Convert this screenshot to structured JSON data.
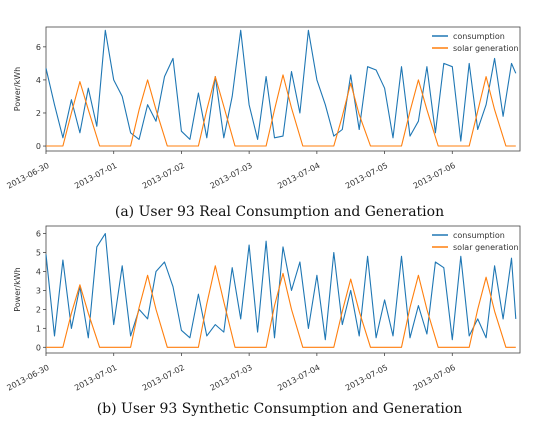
{
  "chart_data": [
    {
      "type": "line",
      "ylabel": "Power/kWh",
      "ylim": [
        -0.3,
        7.2
      ],
      "yticks": [
        0,
        2,
        4,
        6
      ],
      "xlim": [
        "2013-06-30 00:00",
        "2013-07-07 00:00"
      ],
      "xtick_labels": [
        "2013-06-30",
        "2013-07-01",
        "2013-07-02",
        "2013-07-03",
        "2013-07-04",
        "2013-07-05",
        "2013-07-06"
      ],
      "caption": "(a) User 93 Real Consumption and Generation",
      "legend_position": "upper-right",
      "series": [
        {
          "name": "consumption",
          "color": "#1f77b4",
          "x": [
            "2013-06-30 00:00",
            "2013-06-30 03:00",
            "2013-06-30 06:00",
            "2013-06-30 09:00",
            "2013-06-30 12:00",
            "2013-06-30 15:00",
            "2013-06-30 18:00",
            "2013-06-30 21:00",
            "2013-07-01 00:00",
            "2013-07-01 03:00",
            "2013-07-01 06:00",
            "2013-07-01 09:00",
            "2013-07-01 12:00",
            "2013-07-01 15:00",
            "2013-07-01 18:00",
            "2013-07-01 21:00",
            "2013-07-02 00:00",
            "2013-07-02 03:00",
            "2013-07-02 06:00",
            "2013-07-02 09:00",
            "2013-07-02 12:00",
            "2013-07-02 15:00",
            "2013-07-02 18:00",
            "2013-07-02 21:00",
            "2013-07-03 00:00",
            "2013-07-03 03:00",
            "2013-07-03 06:00",
            "2013-07-03 09:00",
            "2013-07-03 12:00",
            "2013-07-03 15:00",
            "2013-07-03 18:00",
            "2013-07-03 21:00",
            "2013-07-04 00:00",
            "2013-07-04 03:00",
            "2013-07-04 06:00",
            "2013-07-04 09:00",
            "2013-07-04 12:00",
            "2013-07-04 15:00",
            "2013-07-04 18:00",
            "2013-07-04 21:00",
            "2013-07-05 00:00",
            "2013-07-05 03:00",
            "2013-07-05 06:00",
            "2013-07-05 09:00",
            "2013-07-05 12:00",
            "2013-07-05 15:00",
            "2013-07-05 18:00",
            "2013-07-05 21:00",
            "2013-07-06 00:00",
            "2013-07-06 03:00",
            "2013-07-06 06:00",
            "2013-07-06 09:00",
            "2013-07-06 12:00",
            "2013-07-06 15:00",
            "2013-07-06 18:00",
            "2013-07-06 21:00",
            "2013-07-06 22:30"
          ],
          "values": [
            4.7,
            2.5,
            0.5,
            2.8,
            0.8,
            3.5,
            1.2,
            7.0,
            4.0,
            3.0,
            0.8,
            0.4,
            2.5,
            1.5,
            4.2,
            5.3,
            0.9,
            0.4,
            3.2,
            0.5,
            4.2,
            0.5,
            3.0,
            7.0,
            2.5,
            0.4,
            4.2,
            0.5,
            0.6,
            4.5,
            2.0,
            7.0,
            4.0,
            2.5,
            0.6,
            1.0,
            4.3,
            1.0,
            4.8,
            4.6,
            3.5,
            0.5,
            4.8,
            0.6,
            1.5,
            4.8,
            0.8,
            5.0,
            4.8,
            0.3,
            5.0,
            1.0,
            2.5,
            5.3,
            1.8,
            5.0,
            4.4
          ]
        },
        {
          "name": "solar generation",
          "color": "#ff7f0e",
          "x": [
            "2013-06-30 00:00",
            "2013-06-30 06:00",
            "2013-06-30 09:00",
            "2013-06-30 12:00",
            "2013-06-30 15:00",
            "2013-06-30 19:00",
            "2013-07-01 06:00",
            "2013-07-01 09:00",
            "2013-07-01 12:00",
            "2013-07-01 15:00",
            "2013-07-01 19:00",
            "2013-07-02 06:00",
            "2013-07-02 09:00",
            "2013-07-02 12:00",
            "2013-07-02 15:00",
            "2013-07-02 19:00",
            "2013-07-03 06:00",
            "2013-07-03 09:00",
            "2013-07-03 12:00",
            "2013-07-03 15:00",
            "2013-07-03 19:00",
            "2013-07-04 06:00",
            "2013-07-04 09:00",
            "2013-07-04 12:00",
            "2013-07-04 15:00",
            "2013-07-04 19:00",
            "2013-07-05 06:00",
            "2013-07-05 09:00",
            "2013-07-05 12:00",
            "2013-07-05 15:00",
            "2013-07-05 19:00",
            "2013-07-06 06:00",
            "2013-07-06 09:00",
            "2013-07-06 12:00",
            "2013-07-06 15:00",
            "2013-07-06 19:00",
            "2013-07-06 22:30"
          ],
          "values": [
            0,
            0,
            2.0,
            3.9,
            2.2,
            0,
            0,
            2.2,
            4.0,
            2.2,
            0,
            0,
            2.2,
            4.2,
            2.4,
            0,
            0,
            2.2,
            4.3,
            2.3,
            0,
            0,
            1.8,
            3.8,
            1.9,
            0,
            0,
            2.1,
            4.0,
            2.2,
            0,
            0,
            2.1,
            4.2,
            2.2,
            0,
            0
          ]
        }
      ]
    },
    {
      "type": "line",
      "ylabel": "Power/kWh",
      "ylim": [
        -0.3,
        6.4
      ],
      "yticks": [
        0,
        1,
        2,
        3,
        4,
        5,
        6
      ],
      "xlim": [
        "2013-06-30 00:00",
        "2013-07-07 00:00"
      ],
      "xtick_labels": [
        "2013-06-30",
        "2013-07-01",
        "2013-07-02",
        "2013-07-03",
        "2013-07-04",
        "2013-07-05",
        "2013-07-06"
      ],
      "caption": "(b) User 93 Synthetic Consumption and Generation",
      "legend_position": "upper-right",
      "series": [
        {
          "name": "consumption",
          "color": "#1f77b4",
          "x": [
            "2013-06-30 00:00",
            "2013-06-30 03:00",
            "2013-06-30 06:00",
            "2013-06-30 09:00",
            "2013-06-30 12:00",
            "2013-06-30 15:00",
            "2013-06-30 18:00",
            "2013-06-30 21:00",
            "2013-07-01 00:00",
            "2013-07-01 03:00",
            "2013-07-01 06:00",
            "2013-07-01 09:00",
            "2013-07-01 12:00",
            "2013-07-01 15:00",
            "2013-07-01 18:00",
            "2013-07-01 21:00",
            "2013-07-02 00:00",
            "2013-07-02 03:00",
            "2013-07-02 06:00",
            "2013-07-02 09:00",
            "2013-07-02 12:00",
            "2013-07-02 15:00",
            "2013-07-02 18:00",
            "2013-07-02 21:00",
            "2013-07-03 00:00",
            "2013-07-03 03:00",
            "2013-07-03 06:00",
            "2013-07-03 09:00",
            "2013-07-03 12:00",
            "2013-07-03 15:00",
            "2013-07-03 18:00",
            "2013-07-03 21:00",
            "2013-07-04 00:00",
            "2013-07-04 03:00",
            "2013-07-04 06:00",
            "2013-07-04 09:00",
            "2013-07-04 12:00",
            "2013-07-04 15:00",
            "2013-07-04 18:00",
            "2013-07-04 21:00",
            "2013-07-05 00:00",
            "2013-07-05 03:00",
            "2013-07-05 06:00",
            "2013-07-05 09:00",
            "2013-07-05 12:00",
            "2013-07-05 15:00",
            "2013-07-05 18:00",
            "2013-07-05 21:00",
            "2013-07-06 00:00",
            "2013-07-06 03:00",
            "2013-07-06 06:00",
            "2013-07-06 09:00",
            "2013-07-06 12:00",
            "2013-07-06 15:00",
            "2013-07-06 18:00",
            "2013-07-06 21:00",
            "2013-07-06 22:30"
          ],
          "values": [
            4.9,
            0.6,
            4.6,
            1.0,
            3.2,
            0.5,
            5.3,
            6.0,
            1.2,
            4.3,
            0.6,
            2.0,
            1.5,
            4.0,
            4.5,
            3.2,
            0.9,
            0.5,
            2.8,
            0.6,
            1.2,
            0.8,
            4.2,
            1.5,
            5.4,
            0.8,
            5.6,
            0.5,
            5.3,
            3.0,
            4.5,
            1.0,
            3.8,
            0.4,
            5.0,
            1.2,
            3.0,
            0.6,
            4.8,
            0.5,
            2.5,
            0.6,
            4.8,
            0.5,
            2.2,
            0.7,
            4.5,
            4.2,
            0.4,
            4.8,
            0.6,
            1.5,
            0.5,
            4.3,
            1.5,
            4.7,
            1.5
          ]
        },
        {
          "name": "solar generation",
          "color": "#ff7f0e",
          "x": [
            "2013-06-30 00:00",
            "2013-06-30 06:00",
            "2013-06-30 09:00",
            "2013-06-30 12:00",
            "2013-06-30 15:00",
            "2013-06-30 19:00",
            "2013-07-01 06:00",
            "2013-07-01 09:00",
            "2013-07-01 12:00",
            "2013-07-01 15:00",
            "2013-07-01 19:00",
            "2013-07-02 06:00",
            "2013-07-02 09:00",
            "2013-07-02 12:00",
            "2013-07-02 15:00",
            "2013-07-02 19:00",
            "2013-07-03 06:00",
            "2013-07-03 09:00",
            "2013-07-03 12:00",
            "2013-07-03 15:00",
            "2013-07-03 19:00",
            "2013-07-04 06:00",
            "2013-07-04 09:00",
            "2013-07-04 12:00",
            "2013-07-04 15:00",
            "2013-07-04 19:00",
            "2013-07-05 06:00",
            "2013-07-05 09:00",
            "2013-07-05 12:00",
            "2013-07-05 15:00",
            "2013-07-05 19:00",
            "2013-07-06 06:00",
            "2013-07-06 09:00",
            "2013-07-06 12:00",
            "2013-07-06 15:00",
            "2013-07-06 19:00",
            "2013-07-06 22:30"
          ],
          "values": [
            0,
            0,
            1.8,
            3.3,
            1.8,
            0,
            0,
            2.1,
            3.8,
            2.0,
            0,
            0,
            2.3,
            4.3,
            2.4,
            0,
            0,
            2.2,
            3.9,
            2.0,
            0,
            0,
            1.9,
            3.6,
            1.9,
            0,
            0,
            2.1,
            3.8,
            2.0,
            0,
            0,
            2.0,
            3.7,
            1.9,
            0,
            0
          ]
        }
      ]
    }
  ]
}
